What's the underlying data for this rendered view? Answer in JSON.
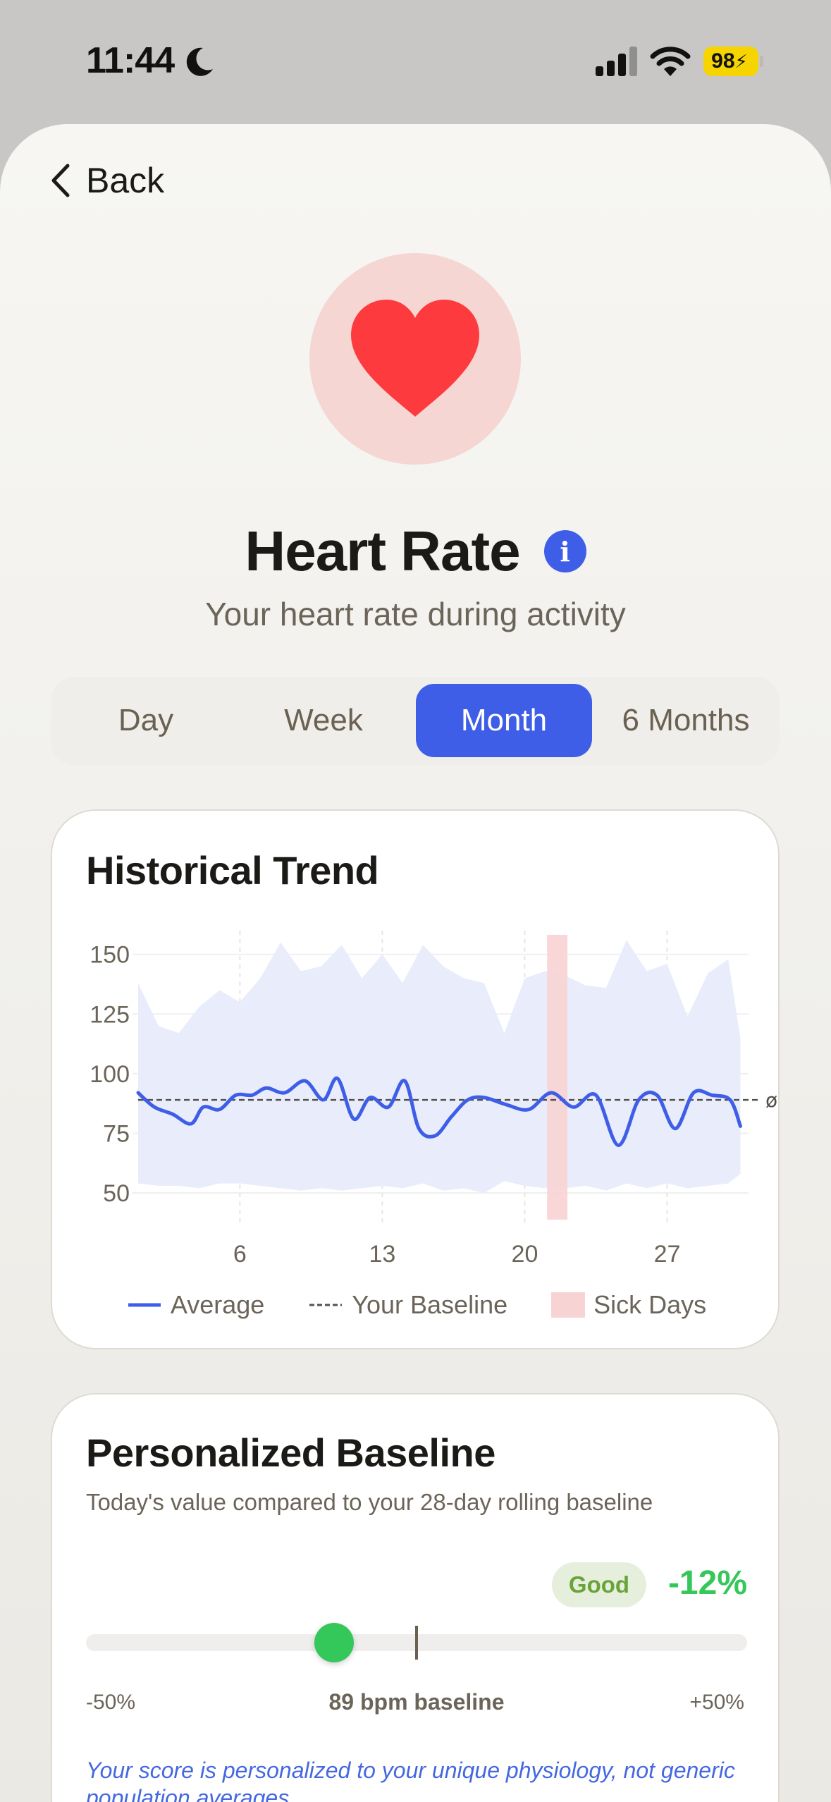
{
  "status_bar": {
    "time": "11:44",
    "battery": "98",
    "icons": [
      "moon-icon",
      "signal-icon",
      "wifi-icon",
      "battery-charging-icon"
    ]
  },
  "nav": {
    "back_label": "Back",
    "back_icon": "chevron-left-icon"
  },
  "hero": {
    "icon": "heart-icon",
    "circle_color": "#f5d6d2",
    "heart_color": "#fd3a3e"
  },
  "header": {
    "title": "Heart Rate",
    "info_icon": "info-icon",
    "subtitle": "Your heart rate during activity"
  },
  "tabs": {
    "items": [
      {
        "label": "Day"
      },
      {
        "label": "Week"
      },
      {
        "label": "Month"
      },
      {
        "label": "6 Months"
      }
    ],
    "active_index": 2,
    "accent": "#3f5ee8"
  },
  "trend_card": {
    "title": "Historical Trend",
    "chart_data": {
      "type": "line",
      "title": "Historical Trend",
      "xlabel": "",
      "ylabel": "",
      "xlim": [
        1,
        31
      ],
      "ylim": [
        40,
        170
      ],
      "x_ticks": [
        6,
        13,
        20,
        27
      ],
      "y_ticks": [
        50,
        75,
        100,
        125,
        150
      ],
      "grid": true,
      "legend_position": "bottom",
      "baseline": {
        "name": "Your Baseline",
        "value": 89,
        "end_label": "ø"
      },
      "sick_days": {
        "name": "Sick Days",
        "start": 21.1,
        "end": 22.1
      },
      "series": [
        {
          "name": "Average",
          "color": "#3f5ee8",
          "x": [
            1,
            1.8,
            2.7,
            3.6,
            4.2,
            5,
            5.8,
            6.6,
            7.3,
            8.2,
            9.2,
            10.1,
            10.8,
            11.6,
            12.4,
            13.3,
            14.1,
            14.8,
            15.6,
            16.4,
            17.2,
            18,
            19.1,
            20.2,
            21.3,
            22.4,
            23.5,
            24.6,
            25.6,
            26.5,
            27.4,
            28.3,
            29.2,
            30.1,
            30.6
          ],
          "y": [
            92,
            86,
            83,
            79,
            86,
            85,
            91,
            91,
            94,
            92,
            97,
            89,
            98,
            81,
            90,
            86,
            97,
            77,
            74,
            82,
            89,
            90,
            87,
            85,
            92,
            86,
            91,
            70,
            89,
            91,
            77,
            92,
            91,
            89,
            78
          ]
        },
        {
          "name": "Range",
          "type": "area",
          "color": "#e9edfb",
          "x": [
            1,
            2,
            3,
            4,
            5,
            6,
            7,
            8,
            9,
            10,
            11,
            12,
            13,
            14,
            15,
            16,
            17,
            18,
            19,
            20,
            21,
            22,
            23,
            24,
            25,
            26,
            27,
            28,
            29,
            30,
            30.6
          ],
          "upper": [
            138,
            120,
            117,
            128,
            135,
            130,
            140,
            155,
            143,
            145,
            154,
            140,
            150,
            138,
            154,
            145,
            140,
            138,
            117,
            140,
            143,
            141,
            137,
            136,
            156,
            143,
            146,
            124,
            142,
            148,
            115
          ],
          "lower": [
            54,
            53,
            53,
            52,
            54,
            54,
            53,
            52,
            51,
            52,
            51,
            52,
            53,
            52,
            54,
            51,
            52,
            50,
            55,
            53,
            52,
            52,
            53,
            51,
            54,
            52,
            54,
            52,
            53,
            54,
            58
          ]
        }
      ]
    },
    "legend": [
      {
        "label": "Average",
        "kind": "line"
      },
      {
        "label": "Your Baseline",
        "kind": "dashed"
      },
      {
        "label": "Sick Days",
        "kind": "box"
      }
    ]
  },
  "baseline_card": {
    "title": "Personalized Baseline",
    "subtitle": "Today's value compared to your 28-day rolling baseline",
    "badge": "Good",
    "delta": "-12%",
    "slider": {
      "value_percent": -12,
      "min_percent": -50,
      "max_percent": 50
    },
    "scale_min_label": "-50%",
    "scale_center_label": "89 bpm baseline",
    "scale_max_label": "+50%",
    "note": "Your score is personalized to your unique physiology, not generic population averages."
  }
}
